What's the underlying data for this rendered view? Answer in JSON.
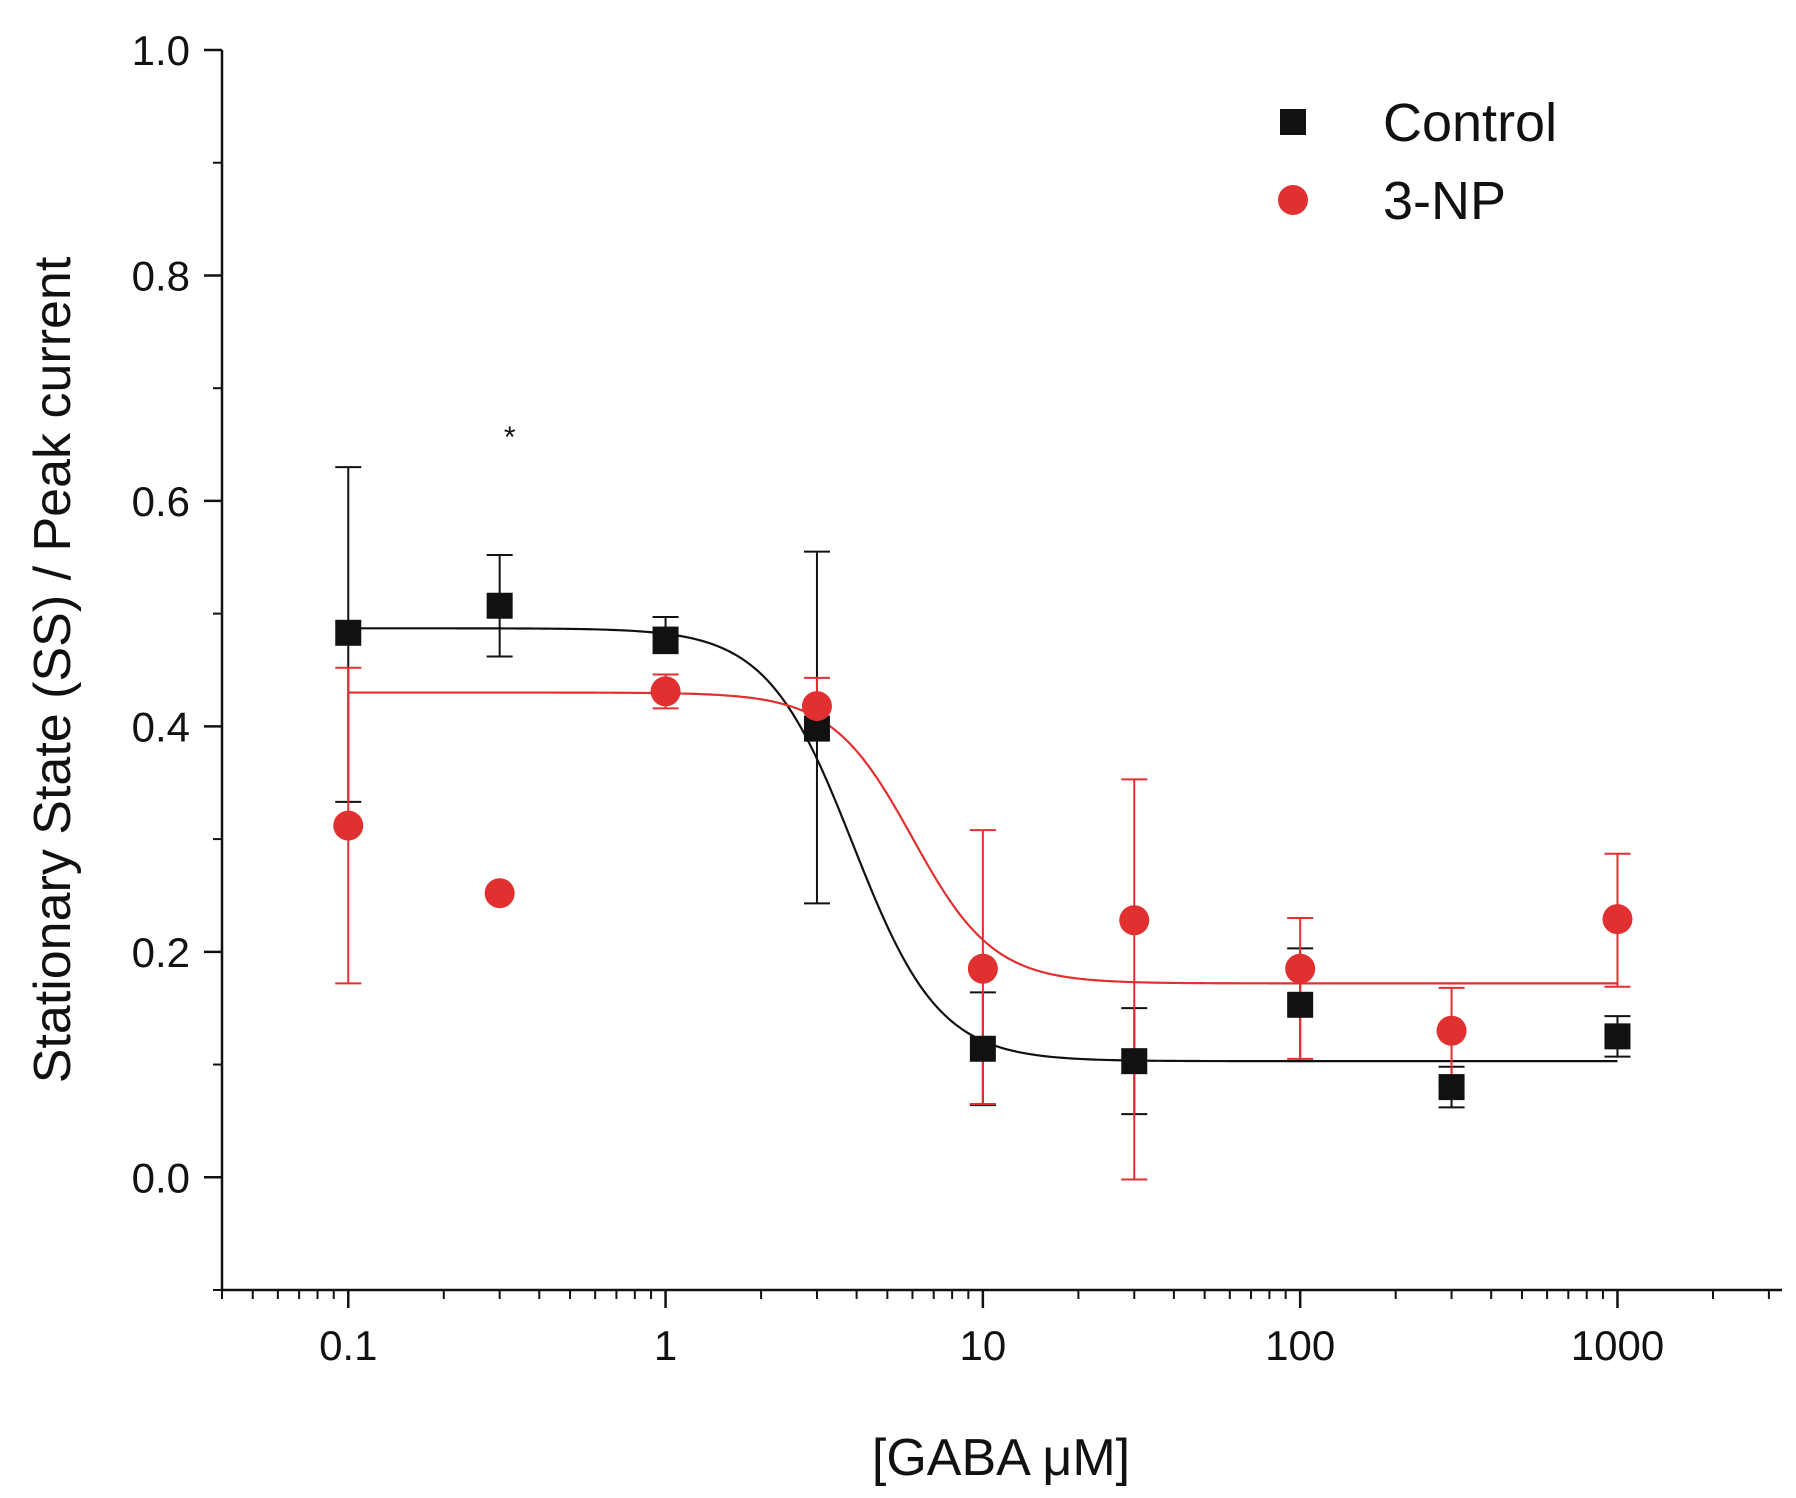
{
  "chart_data": {
    "type": "scatter",
    "title": "",
    "xlabel": "[GABA μM]",
    "ylabel": "Stationary State (SS) / Peak current",
    "xscale": "log",
    "xlim": [
      0.04,
      3300
    ],
    "ylim": [
      -0.1,
      1.0
    ],
    "grid": false,
    "legend_position": "top-right",
    "x_ticks": [
      0.1,
      1,
      10,
      100,
      1000
    ],
    "x_tick_labels": [
      "0.1",
      "1",
      "10",
      "100",
      "1000"
    ],
    "y_ticks": [
      0.0,
      0.2,
      0.4,
      0.6,
      0.8,
      1.0
    ],
    "y_tick_labels": [
      "0.0",
      "0.2",
      "0.4",
      "0.6",
      "0.8",
      "1.0"
    ],
    "series": [
      {
        "name": "Control",
        "color": "#111111",
        "marker": "square",
        "x": [
          0.1,
          0.3,
          1,
          3,
          10,
          30,
          100,
          300,
          1000
        ],
        "y": [
          0.483,
          0.507,
          0.477,
          0.398,
          0.114,
          0.103,
          0.153,
          0.08,
          0.125
        ],
        "err_low": [
          0.15,
          0.045,
          0.012,
          0.155,
          0.05,
          0.047,
          0.05,
          0.018,
          0.018
        ],
        "err_high": [
          0.147,
          0.045,
          0.02,
          0.157,
          0.05,
          0.047,
          0.05,
          0.018,
          0.018
        ],
        "fit": {
          "model": "logistic",
          "top": 0.487,
          "bottom": 0.103,
          "x0": 3.9,
          "hill": 3.2
        }
      },
      {
        "name": "3-NP",
        "color": "#e03030",
        "marker": "circle",
        "x": [
          0.1,
          0.3,
          1,
          3,
          10,
          30,
          100,
          300,
          1000
        ],
        "y": [
          0.312,
          0.252,
          0.431,
          0.418,
          0.185,
          0.228,
          0.185,
          0.13,
          0.229
        ],
        "err_low": [
          0.14,
          0.0,
          0.015,
          0.0,
          0.12,
          0.23,
          0.08,
          0.05,
          0.06
        ],
        "err_high": [
          0.14,
          0.0,
          0.015,
          0.025,
          0.123,
          0.125,
          0.045,
          0.038,
          0.058
        ],
        "fit": {
          "model": "logistic",
          "top": 0.43,
          "bottom": 0.172,
          "x0": 6.0,
          "hill": 3.4
        }
      }
    ],
    "annotations": [
      {
        "text": "*",
        "x": 0.3,
        "y": 0.655
      }
    ]
  }
}
